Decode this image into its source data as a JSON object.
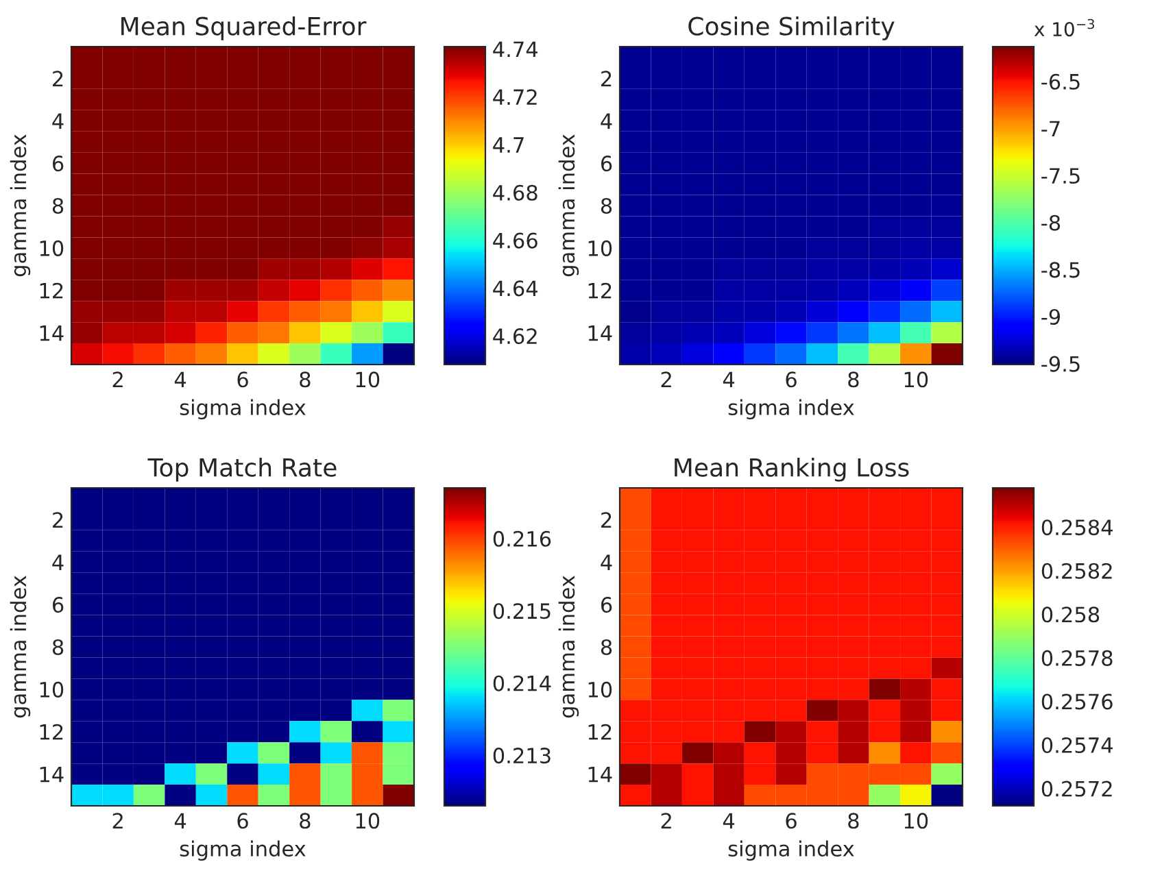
{
  "chart_data": [
    {
      "type": "heatmap",
      "title": "Mean Squared-Error",
      "xlabel": "sigma index",
      "ylabel": "gamma index",
      "categories": [
        null,
        "2",
        null,
        "4",
        null,
        "6",
        null,
        "8",
        null,
        "10",
        null
      ],
      "y_categories": [
        null,
        "2",
        null,
        "4",
        null,
        "6",
        null,
        "8",
        null,
        "10",
        null,
        "12",
        null,
        "14",
        null
      ],
      "clim": [
        4.608,
        4.741
      ],
      "cticks": [
        4.62,
        4.64,
        4.66,
        4.68,
        4.7,
        4.72,
        4.74
      ],
      "cells": [
        [
          4.741,
          4.741,
          4.741,
          4.741,
          4.741,
          4.741,
          4.741,
          4.741,
          4.741,
          4.741,
          4.741
        ],
        [
          4.741,
          4.741,
          4.741,
          4.741,
          4.741,
          4.741,
          4.741,
          4.741,
          4.741,
          4.741,
          4.741
        ],
        [
          4.741,
          4.741,
          4.741,
          4.741,
          4.741,
          4.741,
          4.741,
          4.741,
          4.741,
          4.741,
          4.741
        ],
        [
          4.741,
          4.741,
          4.741,
          4.741,
          4.741,
          4.741,
          4.741,
          4.741,
          4.741,
          4.741,
          4.741
        ],
        [
          4.741,
          4.741,
          4.741,
          4.741,
          4.741,
          4.741,
          4.741,
          4.741,
          4.741,
          4.741,
          4.741
        ],
        [
          4.741,
          4.741,
          4.741,
          4.741,
          4.741,
          4.741,
          4.741,
          4.741,
          4.741,
          4.741,
          4.741
        ],
        [
          4.741,
          4.741,
          4.741,
          4.741,
          4.741,
          4.741,
          4.741,
          4.741,
          4.741,
          4.741,
          4.741
        ],
        [
          4.741,
          4.741,
          4.741,
          4.741,
          4.741,
          4.741,
          4.741,
          4.741,
          4.741,
          4.741,
          4.741
        ],
        [
          4.741,
          4.741,
          4.741,
          4.741,
          4.741,
          4.741,
          4.741,
          4.741,
          4.741,
          4.741,
          4.738
        ],
        [
          4.741,
          4.741,
          4.741,
          4.741,
          4.741,
          4.741,
          4.741,
          4.741,
          4.741,
          4.739,
          4.736
        ],
        [
          4.741,
          4.741,
          4.741,
          4.741,
          4.741,
          4.741,
          4.737,
          4.737,
          4.735,
          4.73,
          4.726
        ],
        [
          4.741,
          4.741,
          4.741,
          4.737,
          4.737,
          4.737,
          4.733,
          4.729,
          4.722,
          4.716,
          4.71
        ],
        [
          4.738,
          4.738,
          4.738,
          4.734,
          4.734,
          4.729,
          4.721,
          4.716,
          4.712,
          4.701,
          4.69
        ],
        [
          4.738,
          4.734,
          4.734,
          4.731,
          4.724,
          4.716,
          4.712,
          4.701,
          4.69,
          4.68,
          4.664
        ],
        [
          4.731,
          4.727,
          4.722,
          4.716,
          4.711,
          4.701,
          4.69,
          4.68,
          4.664,
          4.645,
          4.608
        ]
      ]
    },
    {
      "type": "heatmap",
      "title": "Cosine Similarity",
      "xlabel": "sigma index",
      "ylabel": "gamma index",
      "annotations": [
        "x 10$^{−3}$"
      ],
      "categories": [
        null,
        "2",
        null,
        "4",
        null,
        "6",
        null,
        "8",
        null,
        "10",
        null
      ],
      "y_categories": [
        null,
        "2",
        null,
        "4",
        null,
        "6",
        null,
        "8",
        null,
        "10",
        null,
        "12",
        null,
        "14",
        null
      ],
      "clim": [
        -9.51,
        -6.13
      ],
      "cticks": [
        -9.5,
        -9,
        -8.5,
        -8,
        -7.5,
        -7,
        -6.5
      ],
      "cells": [
        [
          -9.45,
          -9.45,
          -9.45,
          -9.45,
          -9.45,
          -9.45,
          -9.45,
          -9.45,
          -9.45,
          -9.45,
          -9.45
        ],
        [
          -9.45,
          -9.45,
          -9.45,
          -9.45,
          -9.45,
          -9.45,
          -9.45,
          -9.45,
          -9.45,
          -9.45,
          -9.45
        ],
        [
          -9.45,
          -9.45,
          -9.45,
          -9.45,
          -9.45,
          -9.45,
          -9.45,
          -9.45,
          -9.45,
          -9.45,
          -9.45
        ],
        [
          -9.45,
          -9.45,
          -9.45,
          -9.45,
          -9.45,
          -9.45,
          -9.45,
          -9.45,
          -9.45,
          -9.45,
          -9.45
        ],
        [
          -9.45,
          -9.45,
          -9.45,
          -9.45,
          -9.45,
          -9.45,
          -9.45,
          -9.45,
          -9.45,
          -9.45,
          -9.45
        ],
        [
          -9.45,
          -9.45,
          -9.45,
          -9.45,
          -9.45,
          -9.45,
          -9.45,
          -9.45,
          -9.45,
          -9.45,
          -9.45
        ],
        [
          -9.45,
          -9.45,
          -9.45,
          -9.45,
          -9.45,
          -9.45,
          -9.45,
          -9.45,
          -9.45,
          -9.45,
          -9.45
        ],
        [
          -9.45,
          -9.45,
          -9.45,
          -9.45,
          -9.45,
          -9.45,
          -9.45,
          -9.45,
          -9.45,
          -9.45,
          -9.44
        ],
        [
          -9.45,
          -9.45,
          -9.45,
          -9.45,
          -9.45,
          -9.45,
          -9.45,
          -9.45,
          -9.43,
          -9.43,
          -9.43
        ],
        [
          -9.45,
          -9.45,
          -9.45,
          -9.45,
          -9.45,
          -9.45,
          -9.42,
          -9.42,
          -9.42,
          -9.4,
          -9.4
        ],
        [
          -9.45,
          -9.45,
          -9.45,
          -9.42,
          -9.42,
          -9.42,
          -9.4,
          -9.4,
          -9.38,
          -9.35,
          -9.28
        ],
        [
          -9.45,
          -9.45,
          -9.45,
          -9.4,
          -9.4,
          -9.4,
          -9.38,
          -9.33,
          -9.25,
          -9.15,
          -8.87
        ],
        [
          -9.47,
          -9.42,
          -9.42,
          -9.38,
          -9.38,
          -9.35,
          -9.25,
          -9.12,
          -8.95,
          -8.72,
          -8.46
        ],
        [
          -9.42,
          -9.4,
          -9.36,
          -9.33,
          -9.22,
          -9.05,
          -8.9,
          -8.7,
          -8.45,
          -8.05,
          -7.6
        ],
        [
          -9.38,
          -9.33,
          -9.22,
          -9.08,
          -8.9,
          -8.72,
          -8.45,
          -8.05,
          -7.6,
          -6.95,
          -6.13
        ]
      ]
    },
    {
      "type": "heatmap",
      "title": "Top Match Rate",
      "xlabel": "sigma index",
      "ylabel": "gamma index",
      "categories": [
        null,
        "2",
        null,
        "4",
        null,
        "6",
        null,
        "8",
        null,
        "10",
        null
      ],
      "y_categories": [
        null,
        "2",
        null,
        "4",
        null,
        "6",
        null,
        "8",
        null,
        "10",
        null,
        "12",
        null,
        "14",
        null
      ],
      "clim": [
        0.2123,
        0.2167
      ],
      "cticks": [
        0.213,
        0.214,
        0.215,
        0.216
      ],
      "cells": [
        [
          0.2123,
          0.2123,
          0.2123,
          0.2123,
          0.2123,
          0.2123,
          0.2123,
          0.2123,
          0.2123,
          0.2123,
          0.2123
        ],
        [
          0.2123,
          0.2123,
          0.2123,
          0.2123,
          0.2123,
          0.2123,
          0.2123,
          0.2123,
          0.2123,
          0.2123,
          0.2123
        ],
        [
          0.2123,
          0.2123,
          0.2123,
          0.2123,
          0.2123,
          0.2123,
          0.2123,
          0.2123,
          0.2123,
          0.2123,
          0.2123
        ],
        [
          0.2123,
          0.2123,
          0.2123,
          0.2123,
          0.2123,
          0.2123,
          0.2123,
          0.2123,
          0.2123,
          0.2123,
          0.2123
        ],
        [
          0.2123,
          0.2123,
          0.2123,
          0.2123,
          0.2123,
          0.2123,
          0.2123,
          0.2123,
          0.2123,
          0.2123,
          0.2123
        ],
        [
          0.2123,
          0.2123,
          0.2123,
          0.2123,
          0.2123,
          0.2123,
          0.2123,
          0.2123,
          0.2123,
          0.2123,
          0.2123
        ],
        [
          0.2123,
          0.2123,
          0.2123,
          0.2123,
          0.2123,
          0.2123,
          0.2123,
          0.2123,
          0.2123,
          0.2123,
          0.2123
        ],
        [
          0.2123,
          0.2123,
          0.2123,
          0.2123,
          0.2123,
          0.2123,
          0.2123,
          0.2123,
          0.2123,
          0.2123,
          0.2123
        ],
        [
          0.2123,
          0.2123,
          0.2123,
          0.2123,
          0.2123,
          0.2123,
          0.2123,
          0.2123,
          0.2123,
          0.2123,
          0.2123
        ],
        [
          0.2123,
          0.2123,
          0.2123,
          0.2123,
          0.2123,
          0.2123,
          0.2123,
          0.2123,
          0.2123,
          0.2123,
          0.2123
        ],
        [
          0.2123,
          0.2123,
          0.2123,
          0.2123,
          0.2123,
          0.2123,
          0.2123,
          0.2123,
          0.2123,
          0.2138,
          0.2145
        ],
        [
          0.2123,
          0.2123,
          0.2123,
          0.2123,
          0.2123,
          0.2123,
          0.2123,
          0.2138,
          0.2145,
          0.2123,
          0.2138
        ],
        [
          0.2123,
          0.2123,
          0.2123,
          0.2123,
          0.2123,
          0.2138,
          0.2145,
          0.2123,
          0.2138,
          0.2159,
          0.2145
        ],
        [
          0.2123,
          0.2123,
          0.2123,
          0.2138,
          0.2145,
          0.2123,
          0.2138,
          0.2159,
          0.2145,
          0.2159,
          0.2145
        ],
        [
          0.2138,
          0.2138,
          0.2145,
          0.2123,
          0.2138,
          0.2159,
          0.2145,
          0.2159,
          0.2145,
          0.2159,
          0.2167
        ]
      ]
    },
    {
      "type": "heatmap",
      "title": "Mean Ranking Loss",
      "xlabel": "sigma index",
      "ylabel": "gamma index",
      "categories": [
        null,
        "2",
        null,
        "4",
        null,
        "6",
        null,
        "8",
        null,
        "10",
        null
      ],
      "y_categories": [
        null,
        "2",
        null,
        "4",
        null,
        "6",
        null,
        "8",
        null,
        "10",
        null,
        "12",
        null,
        "14",
        null
      ],
      "clim": [
        0.25712,
        0.25858
      ],
      "cticks": [
        0.2572,
        0.2574,
        0.2576,
        0.2578,
        0.258,
        0.2582,
        0.2584
      ],
      "cells": [
        [
          0.25833,
          0.25842,
          0.25842,
          0.25842,
          0.25842,
          0.25842,
          0.25842,
          0.25842,
          0.25842,
          0.25842,
          0.25842
        ],
        [
          0.25833,
          0.25842,
          0.25842,
          0.25842,
          0.25842,
          0.25842,
          0.25842,
          0.25842,
          0.25842,
          0.25842,
          0.25842
        ],
        [
          0.25833,
          0.25842,
          0.25842,
          0.25842,
          0.25842,
          0.25842,
          0.25842,
          0.25842,
          0.25842,
          0.25842,
          0.25842
        ],
        [
          0.25833,
          0.25842,
          0.25842,
          0.25842,
          0.25842,
          0.25842,
          0.25842,
          0.25842,
          0.25842,
          0.25842,
          0.25842
        ],
        [
          0.25833,
          0.25842,
          0.25842,
          0.25842,
          0.25842,
          0.25842,
          0.25842,
          0.25842,
          0.25842,
          0.25842,
          0.25842
        ],
        [
          0.25833,
          0.25842,
          0.25842,
          0.25842,
          0.25842,
          0.25842,
          0.25842,
          0.25842,
          0.25842,
          0.25842,
          0.25842
        ],
        [
          0.25833,
          0.25842,
          0.25842,
          0.25842,
          0.25842,
          0.25842,
          0.25842,
          0.25842,
          0.25842,
          0.25842,
          0.25842
        ],
        [
          0.25833,
          0.25842,
          0.25842,
          0.25842,
          0.25842,
          0.25842,
          0.25842,
          0.25842,
          0.25842,
          0.25842,
          0.25842
        ],
        [
          0.25833,
          0.25842,
          0.25842,
          0.25842,
          0.25842,
          0.25842,
          0.25842,
          0.25842,
          0.25842,
          0.25842,
          0.25851
        ],
        [
          0.25833,
          0.25842,
          0.25842,
          0.25842,
          0.25842,
          0.25842,
          0.25842,
          0.25842,
          0.25858,
          0.25851,
          0.25842
        ],
        [
          0.25842,
          0.25842,
          0.25842,
          0.25842,
          0.25842,
          0.25842,
          0.25858,
          0.25851,
          0.25842,
          0.25851,
          0.25842
        ],
        [
          0.25842,
          0.25842,
          0.25842,
          0.25842,
          0.25858,
          0.25851,
          0.25842,
          0.25851,
          0.25842,
          0.25851,
          0.25823
        ],
        [
          0.25842,
          0.25842,
          0.25858,
          0.25851,
          0.25842,
          0.25851,
          0.25842,
          0.25851,
          0.25823,
          0.25842,
          0.25833
        ],
        [
          0.25858,
          0.25851,
          0.25842,
          0.25851,
          0.25842,
          0.25851,
          0.25833,
          0.25833,
          0.25833,
          0.25833,
          0.25789
        ],
        [
          0.25842,
          0.25851,
          0.25842,
          0.25851,
          0.25833,
          0.25833,
          0.25833,
          0.25833,
          0.25789,
          0.25807,
          0.25712
        ]
      ]
    }
  ]
}
